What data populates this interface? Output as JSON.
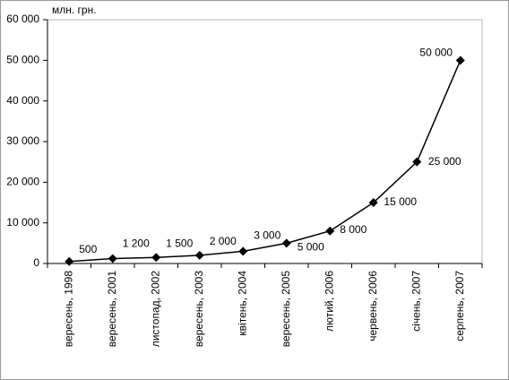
{
  "chart_data": {
    "type": "line",
    "unit_label": "млн. грн.",
    "categories": [
      "вересень, 1998",
      "вересень, 2001",
      "листопад, 2002",
      "вересень, 2003",
      "квітень, 2004",
      "вересень, 2005",
      "лютий, 2006",
      "червень, 2006",
      "січень, 2007",
      "серпень, 2007"
    ],
    "values": [
      500,
      1200,
      1500,
      2000,
      3000,
      5000,
      8000,
      15000,
      25000,
      50000
    ],
    "value_labels": [
      "500",
      "1 200",
      "1 500",
      "2 000",
      "3 000",
      "5 000",
      "8 000",
      "15 000",
      "25 000",
      "50 000"
    ],
    "color": "#000000",
    "ylim": [
      0,
      60000
    ],
    "yticks": [
      0,
      {
        "value": 10000,
        "label": "10 000"
      },
      {
        "value": 20000,
        "label": "20 000"
      },
      {
        "value": 30000,
        "label": "30 000"
      },
      {
        "value": 40000,
        "label": "40 000"
      },
      {
        "value": 50000,
        "label": "50 000"
      },
      {
        "value": 60000,
        "label": "60 000"
      }
    ]
  }
}
